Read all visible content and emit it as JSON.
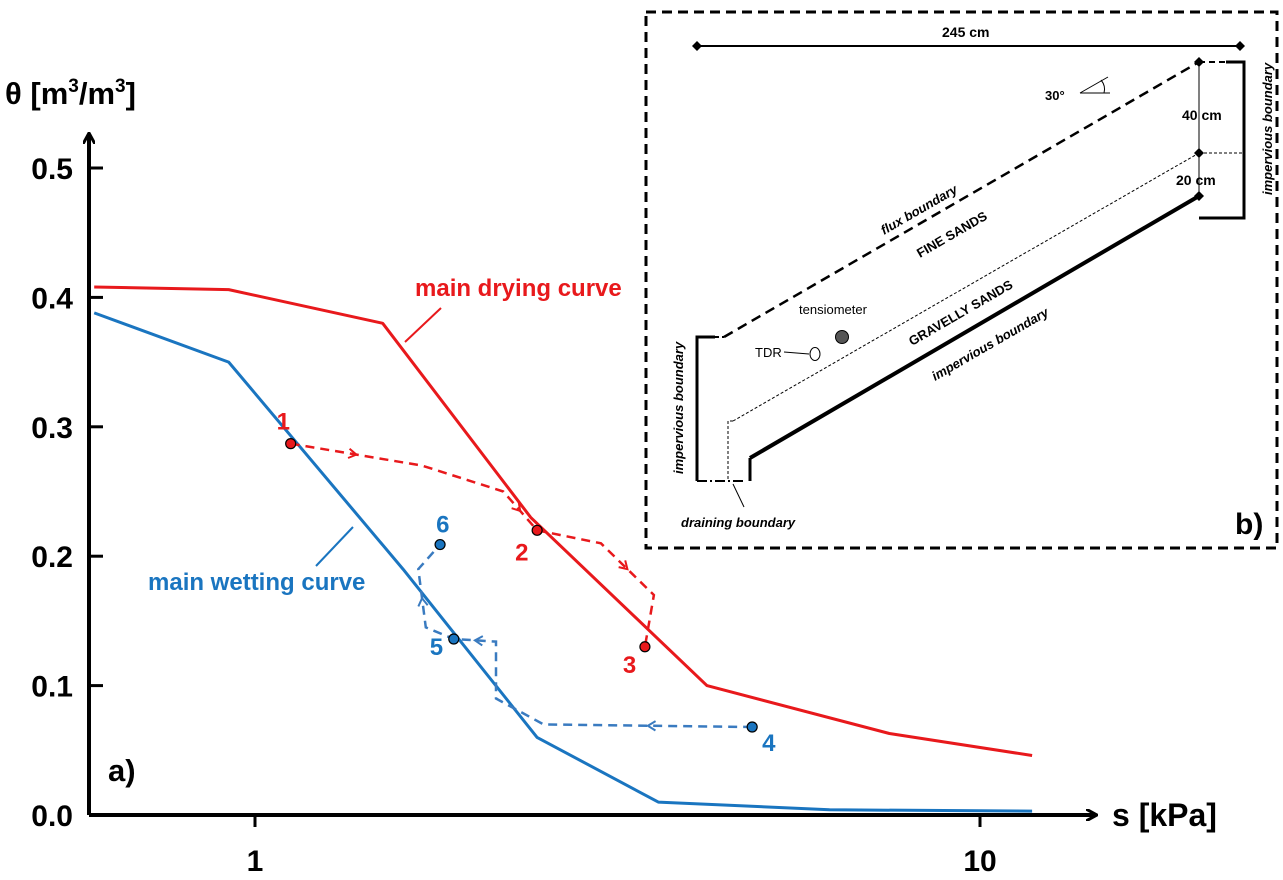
{
  "chart_data": {
    "type": "line",
    "panel_label": "a)",
    "xlabel": "s [kPa]",
    "ylabel_prefix": "θ [m",
    "ylabel_mid": "/m",
    "ylabel_suffix": "]",
    "ylabel_sup": "3",
    "x_scale": "log",
    "xlim": [
      0.6,
      13
    ],
    "ylim": [
      0,
      0.53
    ],
    "x_ticks": [
      1,
      10
    ],
    "x_tick_labels": [
      "1",
      "10"
    ],
    "y_ticks": [
      0.0,
      0.1,
      0.2,
      0.3,
      0.4,
      0.5
    ],
    "y_tick_labels": [
      "0.0",
      "0.1",
      "0.2",
      "0.3",
      "0.4",
      "0.5"
    ],
    "grid": false,
    "series": [
      {
        "name": "main drying curve",
        "color": "#e8191c",
        "x": [
          0.6,
          0.92,
          1.5,
          2.4,
          4.2,
          7.5,
          11.8
        ],
        "y": [
          0.408,
          0.406,
          0.38,
          0.23,
          0.1,
          0.063,
          0.046
        ]
      },
      {
        "name": "main wetting curve",
        "color": "#1a75c0",
        "x": [
          0.6,
          0.92,
          1.6,
          2.45,
          3.6,
          6.2,
          11.8
        ],
        "y": [
          0.388,
          0.35,
          0.19,
          0.06,
          0.01,
          0.004,
          0.003
        ]
      }
    ],
    "points": [
      {
        "label": "1",
        "x": 1.12,
        "y": 0.287,
        "color": "#e8191c"
      },
      {
        "label": "2",
        "x": 2.45,
        "y": 0.22,
        "color": "#e8191c"
      },
      {
        "label": "3",
        "x": 3.45,
        "y": 0.13,
        "color": "#e8191c"
      },
      {
        "label": "4",
        "x": 4.85,
        "y": 0.068,
        "color": "#1a75c0"
      },
      {
        "label": "5",
        "x": 1.88,
        "y": 0.136,
        "color": "#1a75c0"
      },
      {
        "label": "6",
        "x": 1.8,
        "y": 0.209,
        "color": "#1a75c0"
      }
    ],
    "drying_path_color": "#e8191c",
    "wetting_path_color": "#3a7bc0",
    "drying_path": [
      [
        1.12,
        0.287
      ],
      [
        1.7,
        0.27
      ],
      [
        2.2,
        0.25
      ],
      [
        2.45,
        0.22
      ],
      [
        3.0,
        0.21
      ],
      [
        3.55,
        0.17
      ],
      [
        3.45,
        0.13
      ]
    ],
    "wetting_path": [
      [
        4.85,
        0.068
      ],
      [
        2.5,
        0.07
      ],
      [
        2.15,
        0.09
      ],
      [
        2.15,
        0.134
      ],
      [
        1.88,
        0.136
      ],
      [
        1.72,
        0.145
      ],
      [
        1.68,
        0.19
      ],
      [
        1.8,
        0.209
      ]
    ]
  },
  "inset": {
    "panel_label": "b)",
    "width_label": "245 cm",
    "angle_label": "30°",
    "depth_top_label": "40 cm",
    "depth_bottom_label": "20 cm",
    "flux_boundary": "flux boundary",
    "fine_sands": "FINE SANDS",
    "gravelly_sands": "GRAVELLY SANDS",
    "impervious_bottom": "impervious boundary",
    "impervious_left": "impervious boundary",
    "impervious_right": "impervious boundary",
    "draining_boundary": "draining boundary",
    "tensiometer": "tensiometer",
    "tdr": "TDR"
  }
}
